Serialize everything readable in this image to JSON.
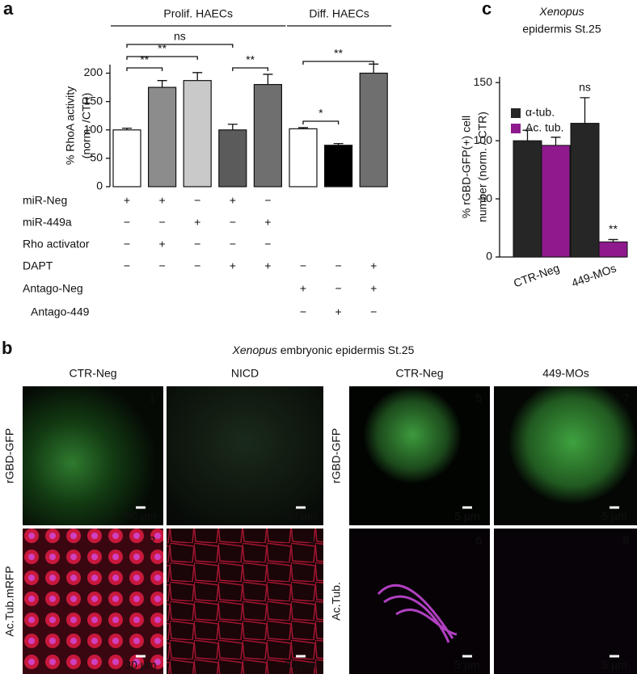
{
  "chart_data": [
    {
      "type": "bar",
      "panel": "a",
      "ylabel_lines": [
        "% RhoA activity",
        "(norm. /CTR)"
      ],
      "values": [
        100,
        175,
        187,
        100,
        180,
        102,
        73,
        200
      ],
      "errors": [
        3,
        12,
        14,
        10,
        18,
        2,
        3,
        16
      ],
      "colors": [
        "#ffffff",
        "#8c8c8c",
        "#c9c9c9",
        "#5b5b5b",
        "#6f6f6f",
        "#ffffff",
        "#000000",
        "#6f6f6f"
      ],
      "ylim": [
        0,
        215
      ],
      "yticks": [
        0,
        50,
        100,
        150,
        200
      ],
      "groups": [
        {
          "label": "Prolif. HAECs",
          "from": 0,
          "to": 4
        },
        {
          "label": "Diff. HAECs",
          "from": 5,
          "to": 7
        }
      ],
      "significance": [
        {
          "label": "ns",
          "between": [
            0,
            3
          ]
        },
        {
          "label": "**",
          "between": [
            0,
            2
          ]
        },
        {
          "label": "**",
          "between": [
            0,
            1
          ]
        },
        {
          "label": "**",
          "between": [
            3,
            4
          ]
        },
        {
          "label": "**",
          "between": [
            5,
            7
          ]
        },
        {
          "label": "*",
          "between": [
            5,
            6
          ]
        }
      ],
      "conditions": [
        {
          "name": "miR-Neg",
          "marks": [
            "+",
            "+",
            "−",
            "+",
            "−",
            null,
            null,
            null
          ]
        },
        {
          "name": "miR-449a",
          "marks": [
            "−",
            "−",
            "+",
            "−",
            "+",
            null,
            null,
            null
          ]
        },
        {
          "name": "Rho activator",
          "marks": [
            "−",
            "+",
            "−",
            "−",
            "−",
            null,
            null,
            null
          ]
        },
        {
          "name": "DAPT",
          "marks": [
            "−",
            "−",
            "−",
            "+",
            "+",
            "−",
            "−",
            "+"
          ]
        },
        {
          "name": "Antago-Neg",
          "marks": [
            null,
            null,
            null,
            null,
            null,
            "+",
            "−",
            "+"
          ]
        },
        {
          "name": "Antago-449",
          "marks": [
            null,
            null,
            null,
            null,
            null,
            "−",
            "+",
            "−"
          ]
        }
      ]
    },
    {
      "type": "grouped_bar",
      "panel": "c",
      "title_italic": "Xenopus",
      "title_rest": "epidermis St.25",
      "ylabel_lines": [
        "% rGBD-GFP(+) cell",
        "number (norm. / CTR)"
      ],
      "categories": [
        "CTR-Neg",
        "449-MOs"
      ],
      "series": [
        {
          "name": "α-tub.",
          "color": "#262626",
          "values": [
            100,
            115
          ],
          "errors": [
            9,
            22
          ]
        },
        {
          "name": "Ac. tub.",
          "color": "#8e1a8e",
          "values": [
            96,
            13
          ],
          "errors": [
            7,
            2
          ]
        }
      ],
      "annotations": [
        {
          "text": "ns",
          "series": 0,
          "index": 1
        },
        {
          "text": "**",
          "series": 1,
          "index": 1
        }
      ],
      "ylim": [
        0,
        155
      ],
      "yticks": [
        0,
        50,
        100,
        150
      ]
    }
  ],
  "panel_b": {
    "panel": "b",
    "title_italic": "Xenopus",
    "title_rest": "embryonic epidermis St.25",
    "columns": [
      "CTR-Neg",
      "NICD",
      "CTR-Neg",
      "449-MOs"
    ],
    "rows_left": [
      "rGBD-GFP",
      "Ac.Tub.mRFP"
    ],
    "rows_right": [
      "rGBD-GFP",
      "Ac.Tub."
    ],
    "images": [
      {
        "number": "1",
        "scale": "30 µm"
      },
      {
        "number": "2",
        "scale": "30 µm"
      },
      {
        "number": "3",
        "scale": "30 µm"
      },
      {
        "number": "4",
        "scale": "30 µm"
      },
      {
        "number": "5",
        "scale": "5 µm"
      },
      {
        "number": "6",
        "scale": "5 µm"
      },
      {
        "number": "7",
        "scale": "5 µm"
      },
      {
        "number": "8",
        "scale": "5 µm"
      }
    ]
  }
}
